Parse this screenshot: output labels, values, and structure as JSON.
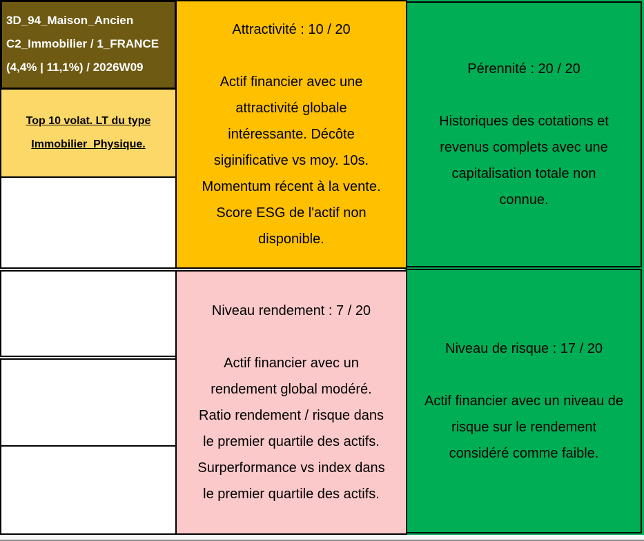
{
  "asset_header": {
    "title": "3D_94_Maison_Ancien\nC2_Immobilier / 1_FRANCE\n(4,4% | 11,1%) / 2026W09"
  },
  "strategy": {
    "label": "Top 10 volat. LT du type\nImmobilier_Physique."
  },
  "cards": {
    "attractivite": {
      "title": "Attractivité : 10 / 20",
      "score": 10,
      "max": 20,
      "body": "Actif financier avec une\nattractivité globale\nintéressante. Décôte\nsiginificative vs moy. 10s.\nMomentum récent à la vente.\nScore ESG de l'actif non\ndisponible."
    },
    "perennite": {
      "title": "Pérennité : 20 / 20",
      "score": 20,
      "max": 20,
      "body": "Historiques des cotations et\nrevenus complets avec une\ncapitalisation totale non\nconnue."
    },
    "rendement": {
      "title": "Niveau rendement : 7 / 20",
      "score": 7,
      "max": 20,
      "body": "Actif financier avec un\nrendement global modéré.\nRatio rendement / risque dans\nle premier quartile des actifs.\nSurperformance vs index dans\nle premier quartile des actifs."
    },
    "risque": {
      "title": "Niveau de risque : 17 / 20",
      "score": 17,
      "max": 20,
      "body": "Actif financier avec un niveau de\nrisque sur le rendement\nconsidéré comme faible."
    }
  },
  "colors": {
    "header_bg": "#6E5A12",
    "header_text": "#FFFFFF",
    "strategy_bg": "#FBD868",
    "attractivite_bg": "#FFC000",
    "rendement_bg": "#FBC9CA",
    "perennite_bg": "#00AE55",
    "risque_bg": "#00AE55",
    "grid_border": "#000000"
  }
}
